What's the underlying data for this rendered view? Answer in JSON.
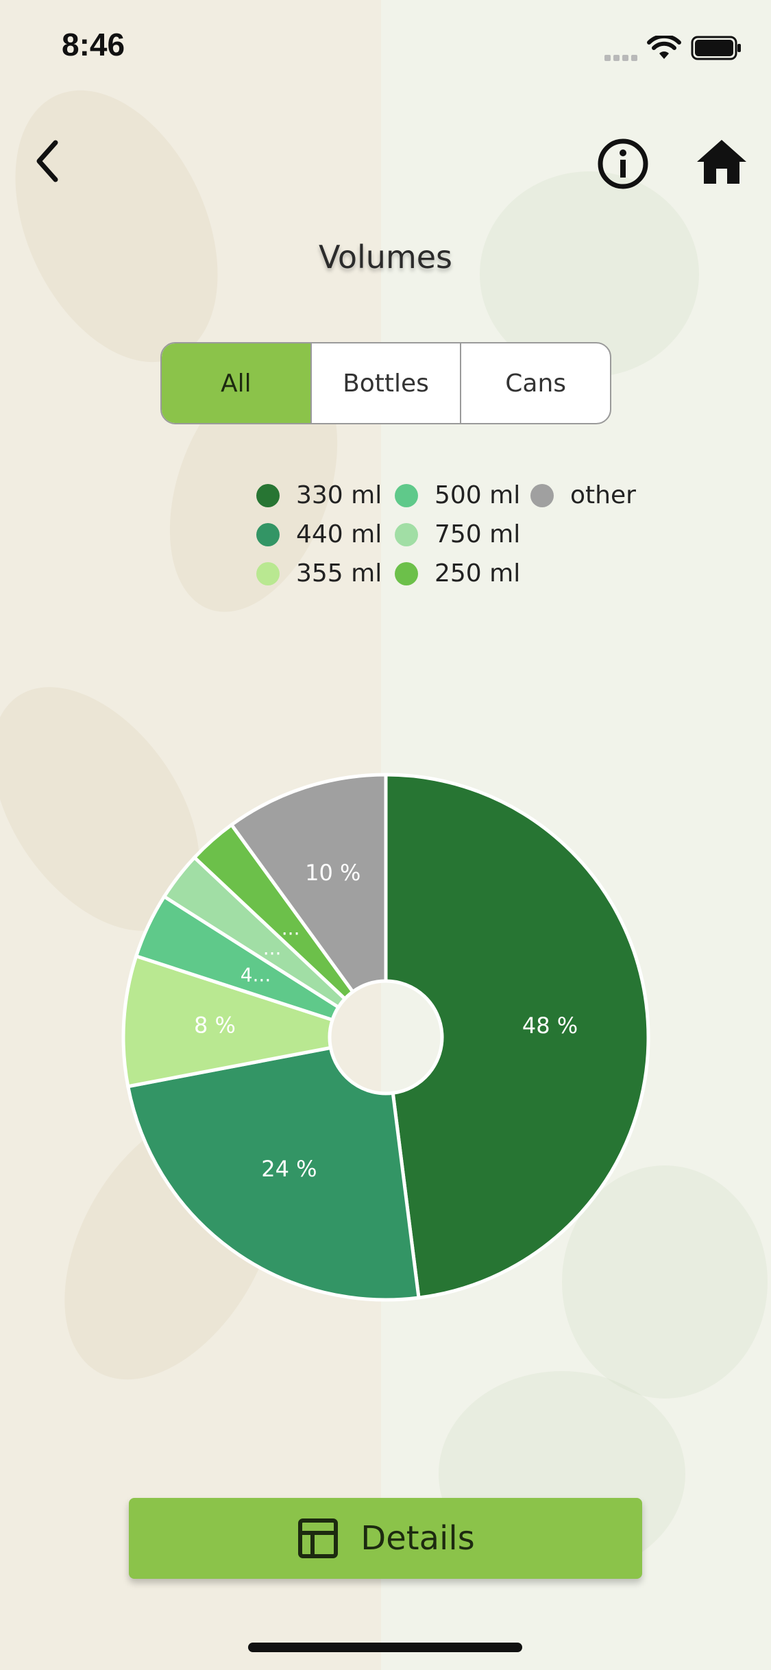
{
  "status_bar": {
    "time": "8:46",
    "icons": [
      "signal-icon",
      "wifi-icon",
      "battery-icon"
    ]
  },
  "nav": {
    "back_icon": "chevron-left-icon",
    "info_icon": "info-icon",
    "home_icon": "home-icon"
  },
  "page": {
    "title": "Volumes"
  },
  "segmented": {
    "options": [
      "All",
      "Bottles",
      "Cans"
    ],
    "selected": "All"
  },
  "colors": {
    "accent": "#8bc34a",
    "330ml": "#277533",
    "440ml": "#339565",
    "355ml": "#b9e891",
    "500ml": "#5fc98a",
    "750ml": "#a1dea5",
    "250ml": "#6cc04a",
    "other": "#a0a0a0"
  },
  "legend": [
    {
      "label": "330 ml",
      "color": "#277533"
    },
    {
      "label": "440 ml",
      "color": "#339565"
    },
    {
      "label": "355 ml",
      "color": "#b9e891"
    },
    {
      "label": "500 ml",
      "color": "#5fc98a"
    },
    {
      "label": "750 ml",
      "color": "#a1dea5"
    },
    {
      "label": "250 ml",
      "color": "#6cc04a"
    },
    {
      "label": "other",
      "color": "#a0a0a0"
    }
  ],
  "chart_data": {
    "type": "pie",
    "donut": true,
    "start": "top, clockwise",
    "slices": [
      {
        "name": "330 ml",
        "value": 48,
        "label": "48 %",
        "color": "#277533"
      },
      {
        "name": "440 ml",
        "value": 24,
        "label": "24 %",
        "color": "#339565"
      },
      {
        "name": "355 ml",
        "value": 8,
        "label": "8 %",
        "color": "#b9e891"
      },
      {
        "name": "500 ml",
        "value": 4,
        "label": "4...",
        "color": "#5fc98a"
      },
      {
        "name": "750 ml",
        "value": 3,
        "label": "...",
        "color": "#a1dea5"
      },
      {
        "name": "250 ml",
        "value": 3,
        "label": "...",
        "color": "#6cc04a"
      },
      {
        "name": "other",
        "value": 10,
        "label": "10 %",
        "color": "#a0a0a0"
      }
    ]
  },
  "details_button": {
    "label": "Details",
    "icon": "table-icon"
  }
}
